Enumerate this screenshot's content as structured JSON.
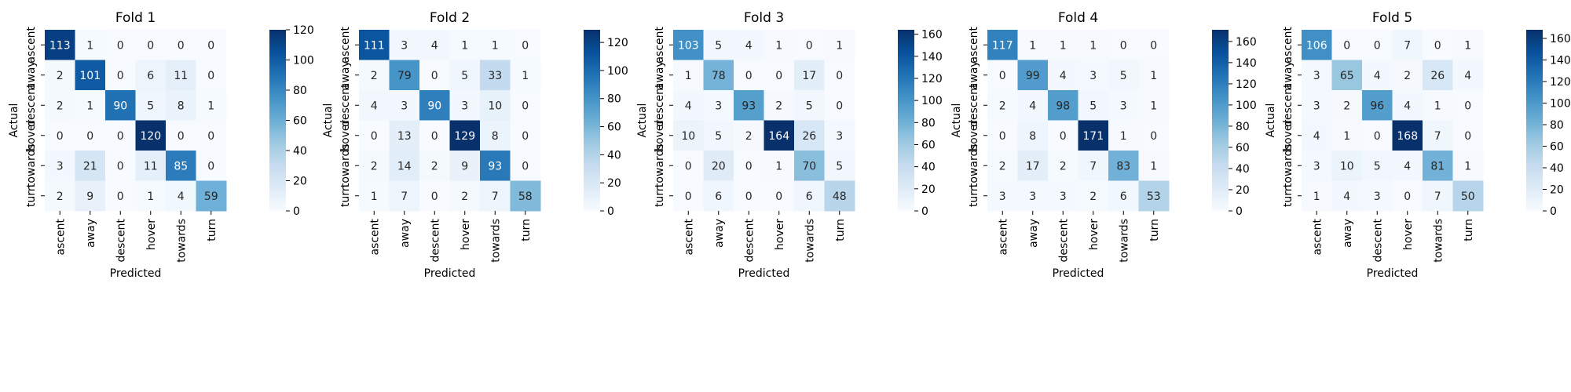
{
  "chart_data": [
    {
      "type": "heatmap",
      "title": "Fold 1",
      "xlabel": "Predicted",
      "ylabel": "Actual",
      "categories": [
        "ascent",
        "away",
        "descent",
        "hover",
        "towards",
        "turn"
      ],
      "matrix": [
        [
          113,
          1,
          0,
          0,
          0,
          0
        ],
        [
          2,
          101,
          0,
          6,
          11,
          0
        ],
        [
          2,
          1,
          90,
          5,
          8,
          1
        ],
        [
          0,
          0,
          0,
          120,
          0,
          0
        ],
        [
          3,
          21,
          0,
          11,
          85,
          0
        ],
        [
          2,
          9,
          0,
          1,
          4,
          59
        ]
      ],
      "colorbar": {
        "min": 0,
        "max": 120,
        "ticks": [
          0,
          20,
          40,
          60,
          80,
          100,
          120
        ]
      },
      "colormap": "Blues"
    },
    {
      "type": "heatmap",
      "title": "Fold 2",
      "xlabel": "Predicted",
      "ylabel": "Actual",
      "categories": [
        "ascent",
        "away",
        "descent",
        "hover",
        "towards",
        "turn"
      ],
      "matrix": [
        [
          111,
          3,
          4,
          1,
          1,
          0
        ],
        [
          2,
          79,
          0,
          5,
          33,
          1
        ],
        [
          4,
          3,
          90,
          3,
          10,
          0
        ],
        [
          0,
          13,
          0,
          129,
          8,
          0
        ],
        [
          2,
          14,
          2,
          9,
          93,
          0
        ],
        [
          1,
          7,
          0,
          2,
          7,
          58
        ]
      ],
      "colorbar": {
        "min": 0,
        "max": 129,
        "ticks": [
          0,
          20,
          40,
          60,
          80,
          100,
          120
        ]
      },
      "colormap": "Blues"
    },
    {
      "type": "heatmap",
      "title": "Fold 3",
      "xlabel": "Predicted",
      "ylabel": "Actual",
      "categories": [
        "ascent",
        "away",
        "descent",
        "hover",
        "towards",
        "turn"
      ],
      "matrix": [
        [
          103,
          5,
          4,
          1,
          0,
          1
        ],
        [
          1,
          78,
          0,
          0,
          17,
          0
        ],
        [
          4,
          3,
          93,
          2,
          5,
          0
        ],
        [
          10,
          5,
          2,
          164,
          26,
          3
        ],
        [
          0,
          20,
          0,
          1,
          70,
          5
        ],
        [
          0,
          6,
          0,
          0,
          6,
          48
        ]
      ],
      "colorbar": {
        "min": 0,
        "max": 164,
        "ticks": [
          0,
          20,
          40,
          60,
          80,
          100,
          120,
          140,
          160
        ]
      },
      "colormap": "Blues"
    },
    {
      "type": "heatmap",
      "title": "Fold 4",
      "xlabel": "Predicted",
      "ylabel": "Actual",
      "categories": [
        "ascent",
        "away",
        "descent",
        "hover",
        "towards",
        "turn"
      ],
      "matrix": [
        [
          117,
          1,
          1,
          1,
          0,
          0
        ],
        [
          0,
          99,
          4,
          3,
          5,
          1
        ],
        [
          2,
          4,
          98,
          5,
          3,
          1
        ],
        [
          0,
          8,
          0,
          171,
          1,
          0
        ],
        [
          2,
          17,
          2,
          7,
          83,
          1
        ],
        [
          3,
          3,
          3,
          2,
          6,
          53
        ]
      ],
      "colorbar": {
        "min": 0,
        "max": 171,
        "ticks": [
          0,
          20,
          40,
          60,
          80,
          100,
          120,
          140,
          160
        ]
      },
      "colormap": "Blues"
    },
    {
      "type": "heatmap",
      "title": "Fold 5",
      "xlabel": "Predicted",
      "ylabel": "Actual",
      "categories": [
        "ascent",
        "away",
        "descent",
        "hover",
        "towards",
        "turn"
      ],
      "matrix": [
        [
          106,
          0,
          0,
          7,
          0,
          1
        ],
        [
          3,
          65,
          4,
          2,
          26,
          4
        ],
        [
          3,
          2,
          96,
          4,
          1,
          0
        ],
        [
          4,
          1,
          0,
          168,
          7,
          0
        ],
        [
          3,
          10,
          5,
          4,
          81,
          1
        ],
        [
          1,
          4,
          3,
          0,
          7,
          50
        ]
      ],
      "colorbar": {
        "min": 0,
        "max": 168,
        "ticks": [
          0,
          20,
          40,
          60,
          80,
          100,
          120,
          140,
          160
        ]
      },
      "colormap": "Blues"
    }
  ]
}
